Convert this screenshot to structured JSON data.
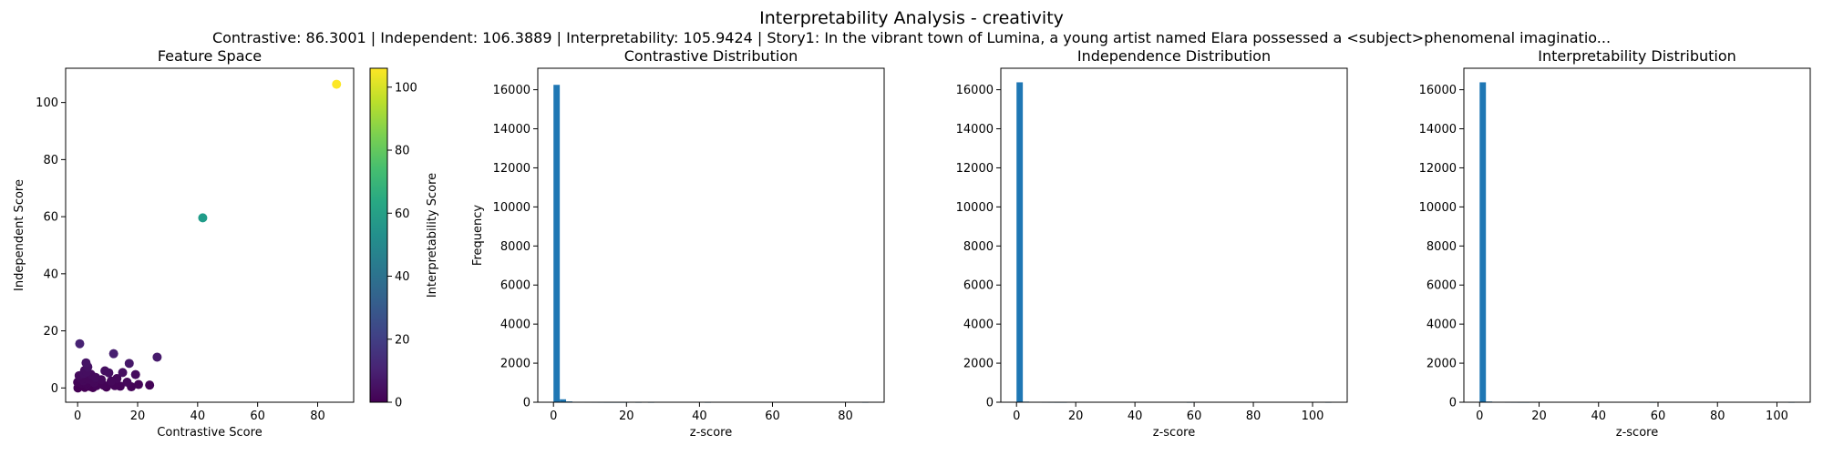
{
  "figure": {
    "title": "Interpretability Analysis - creativity",
    "subtitle": "Contrastive: 86.3001 | Independent: 106.3889 | Interpretability: 105.9424 | Story1: In the vibrant town of Lumina, a young artist named Elara possessed a <subject>phenomenal imaginatio..."
  },
  "chart_data": [
    {
      "type": "scatter",
      "title": "Feature Space",
      "xlabel": "Contrastive Score",
      "ylabel": "Independent Score",
      "xlim": [
        -4,
        92
      ],
      "ylim": [
        -5,
        112
      ],
      "xticks": [
        0,
        20,
        40,
        60,
        80
      ],
      "yticks": [
        0,
        20,
        40,
        60,
        80,
        100
      ],
      "grid": false,
      "colorbar": {
        "label": "Interpretability Score",
        "range": [
          0,
          106
        ],
        "ticks": [
          0,
          20,
          40,
          60,
          80,
          100
        ],
        "colormap": "viridis"
      },
      "points": [
        {
          "x": 86.3,
          "y": 106.4,
          "c": 105.9
        },
        {
          "x": 41.7,
          "y": 59.6,
          "c": 58.0
        },
        {
          "x": 0.7,
          "y": 15.5,
          "c": 10
        },
        {
          "x": 12.0,
          "y": 12.0,
          "c": 9
        },
        {
          "x": 26.5,
          "y": 10.8,
          "c": 8
        },
        {
          "x": 17.2,
          "y": 8.6,
          "c": 7
        },
        {
          "x": 2.8,
          "y": 8.8,
          "c": 6
        },
        {
          "x": 3.4,
          "y": 7.4,
          "c": 5
        },
        {
          "x": 9.1,
          "y": 6.0,
          "c": 4
        },
        {
          "x": 10.4,
          "y": 5.3,
          "c": 4
        },
        {
          "x": 15.0,
          "y": 5.4,
          "c": 4
        },
        {
          "x": 19.3,
          "y": 4.7,
          "c": 3
        },
        {
          "x": 2.0,
          "y": 5.0,
          "c": 4
        },
        {
          "x": 4.4,
          "y": 4.8,
          "c": 3
        },
        {
          "x": 6.0,
          "y": 3.7,
          "c": 3
        },
        {
          "x": 13.1,
          "y": 3.3,
          "c": 2
        },
        {
          "x": 11.2,
          "y": 2.4,
          "c": 2
        },
        {
          "x": 16.5,
          "y": 2.0,
          "c": 2
        },
        {
          "x": 0.8,
          "y": 3.5,
          "c": 2
        },
        {
          "x": 1.9,
          "y": 2.5,
          "c": 2
        },
        {
          "x": 3.5,
          "y": 3.0,
          "c": 2
        },
        {
          "x": 5.5,
          "y": 1.9,
          "c": 2
        },
        {
          "x": 7.3,
          "y": 1.6,
          "c": 1
        },
        {
          "x": 8.7,
          "y": 0.9,
          "c": 1
        },
        {
          "x": 14.2,
          "y": 0.6,
          "c": 1
        },
        {
          "x": 17.9,
          "y": 0.4,
          "c": 1
        },
        {
          "x": 24.0,
          "y": 1.0,
          "c": 1
        },
        {
          "x": 20.3,
          "y": 1.2,
          "c": 1
        },
        {
          "x": 0.3,
          "y": 0.4,
          "c": 0
        },
        {
          "x": 1.1,
          "y": 0.9,
          "c": 0
        },
        {
          "x": 2.4,
          "y": 0.2,
          "c": 0
        },
        {
          "x": 3.1,
          "y": 1.1,
          "c": 1
        },
        {
          "x": 4.2,
          "y": 0.5,
          "c": 0
        },
        {
          "x": 6.3,
          "y": 0.8,
          "c": 1
        },
        {
          "x": 9.6,
          "y": 0.3,
          "c": 0
        },
        {
          "x": 12.4,
          "y": 0.8,
          "c": 1
        },
        {
          "x": 0.0,
          "y": 2.0,
          "c": 1
        },
        {
          "x": 1.5,
          "y": 1.6,
          "c": 1
        },
        {
          "x": 2.7,
          "y": 1.8,
          "c": 1
        },
        {
          "x": 4.9,
          "y": 2.6,
          "c": 2
        },
        {
          "x": 0.5,
          "y": 4.3,
          "c": 3
        },
        {
          "x": 2.3,
          "y": 6.1,
          "c": 4
        },
        {
          "x": 3.0,
          "y": 5.6,
          "c": 4
        },
        {
          "x": 1.3,
          "y": 3.2,
          "c": 2
        },
        {
          "x": 0.1,
          "y": 0.0,
          "c": 0
        },
        {
          "x": 7.9,
          "y": 2.9,
          "c": 2
        },
        {
          "x": 5.1,
          "y": 0.1,
          "c": 0
        },
        {
          "x": 10.9,
          "y": 1.5,
          "c": 1
        }
      ]
    },
    {
      "type": "bar",
      "title": "Contrastive Distribution",
      "xlabel": "z-score",
      "ylabel": "Frequency",
      "xlim": [
        -4.3,
        90.6
      ],
      "ylim": [
        0,
        17100
      ],
      "xticks": [
        0,
        20,
        40,
        60,
        80
      ],
      "yticks": [
        0,
        2000,
        4000,
        6000,
        8000,
        10000,
        12000,
        14000,
        16000
      ],
      "bins": {
        "start": 0,
        "end": 86.3001,
        "count": 50
      },
      "values": [
        16250,
        150,
        40,
        15,
        8,
        4,
        3,
        2,
        1,
        1,
        1,
        1,
        0,
        1,
        0,
        1,
        0,
        0,
        0,
        0,
        0,
        0,
        0,
        0,
        1,
        0,
        0,
        0,
        0,
        0,
        0,
        0,
        0,
        0,
        0,
        0,
        0,
        0,
        0,
        0,
        0,
        0,
        0,
        0,
        0,
        0,
        0,
        0,
        0,
        1
      ]
    },
    {
      "type": "bar",
      "title": "Independence Distribution",
      "xlabel": "z-score",
      "ylabel": "",
      "xlim": [
        -5.3,
        111.7
      ],
      "ylim": [
        0,
        17100
      ],
      "xticks": [
        0,
        20,
        40,
        60,
        80,
        100
      ],
      "yticks": [
        0,
        2000,
        4000,
        6000,
        8000,
        10000,
        12000,
        14000,
        16000
      ],
      "bins": {
        "start": 0,
        "end": 106.3889,
        "count": 50
      },
      "values": [
        16380,
        30,
        10,
        5,
        3,
        2,
        1,
        1,
        0,
        0,
        0,
        0,
        0,
        0,
        0,
        0,
        0,
        0,
        0,
        0,
        0,
        0,
        0,
        0,
        0,
        0,
        0,
        1,
        0,
        0,
        0,
        0,
        0,
        0,
        0,
        0,
        0,
        0,
        0,
        0,
        0,
        0,
        0,
        0,
        0,
        0,
        0,
        0,
        0,
        1
      ]
    },
    {
      "type": "bar",
      "title": "Interpretability Distribution",
      "xlabel": "z-score",
      "ylabel": "",
      "xlim": [
        -5.3,
        111.2
      ],
      "ylim": [
        0,
        17100
      ],
      "xticks": [
        0,
        20,
        40,
        60,
        80,
        100
      ],
      "yticks": [
        0,
        2000,
        4000,
        6000,
        8000,
        10000,
        12000,
        14000,
        16000
      ],
      "bins": {
        "start": 0,
        "end": 105.9424,
        "count": 50
      },
      "values": [
        16380,
        35,
        10,
        5,
        3,
        2,
        1,
        1,
        0,
        0,
        0,
        0,
        0,
        0,
        0,
        0,
        0,
        0,
        0,
        0,
        0,
        0,
        0,
        0,
        0,
        0,
        0,
        1,
        0,
        0,
        0,
        0,
        0,
        0,
        0,
        0,
        0,
        0,
        0,
        0,
        0,
        0,
        0,
        0,
        0,
        0,
        0,
        0,
        0,
        1
      ]
    }
  ],
  "colors": {
    "bar": "#1f77b4",
    "axis": "#000000"
  }
}
